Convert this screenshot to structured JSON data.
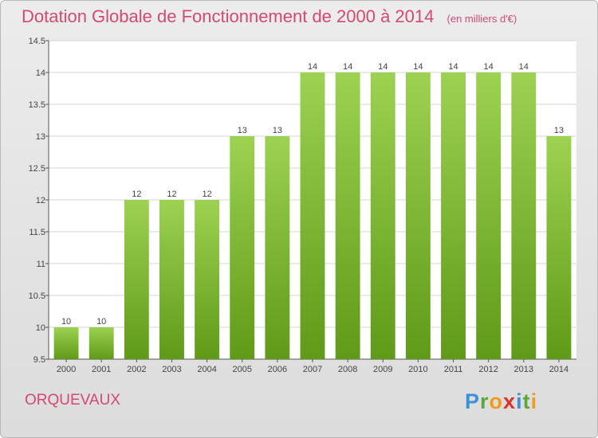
{
  "header": {
    "title": "Dotation Globale de Fonctionnement de 2000 à 2014",
    "unit": "(en milliers d'€)"
  },
  "footer": {
    "place": "ORQUEVAUX",
    "logo": "Proxiti"
  },
  "colors": {
    "title": "#d24a73",
    "bar_light": "#9dd152",
    "bar_dark": "#5f9a18"
  },
  "chart_data": {
    "type": "bar",
    "categories": [
      "2000",
      "2001",
      "2002",
      "2003",
      "2004",
      "2005",
      "2006",
      "2007",
      "2008",
      "2009",
      "2010",
      "2011",
      "2012",
      "2013",
      "2014"
    ],
    "values": [
      10,
      10,
      12,
      12,
      12,
      13,
      13,
      14,
      14,
      14,
      14,
      14,
      14,
      14,
      13
    ],
    "data_labels": [
      "10",
      "10",
      "12",
      "12",
      "12",
      "13",
      "13",
      "14",
      "14",
      "14",
      "14",
      "14",
      "14",
      "14",
      "13"
    ],
    "yticks": [
      "9.5",
      "10",
      "10.5",
      "11",
      "11.5",
      "12",
      "12.5",
      "13",
      "13.5",
      "14",
      "14.5"
    ],
    "ylim": [
      9.5,
      14.5
    ],
    "grid": true
  }
}
